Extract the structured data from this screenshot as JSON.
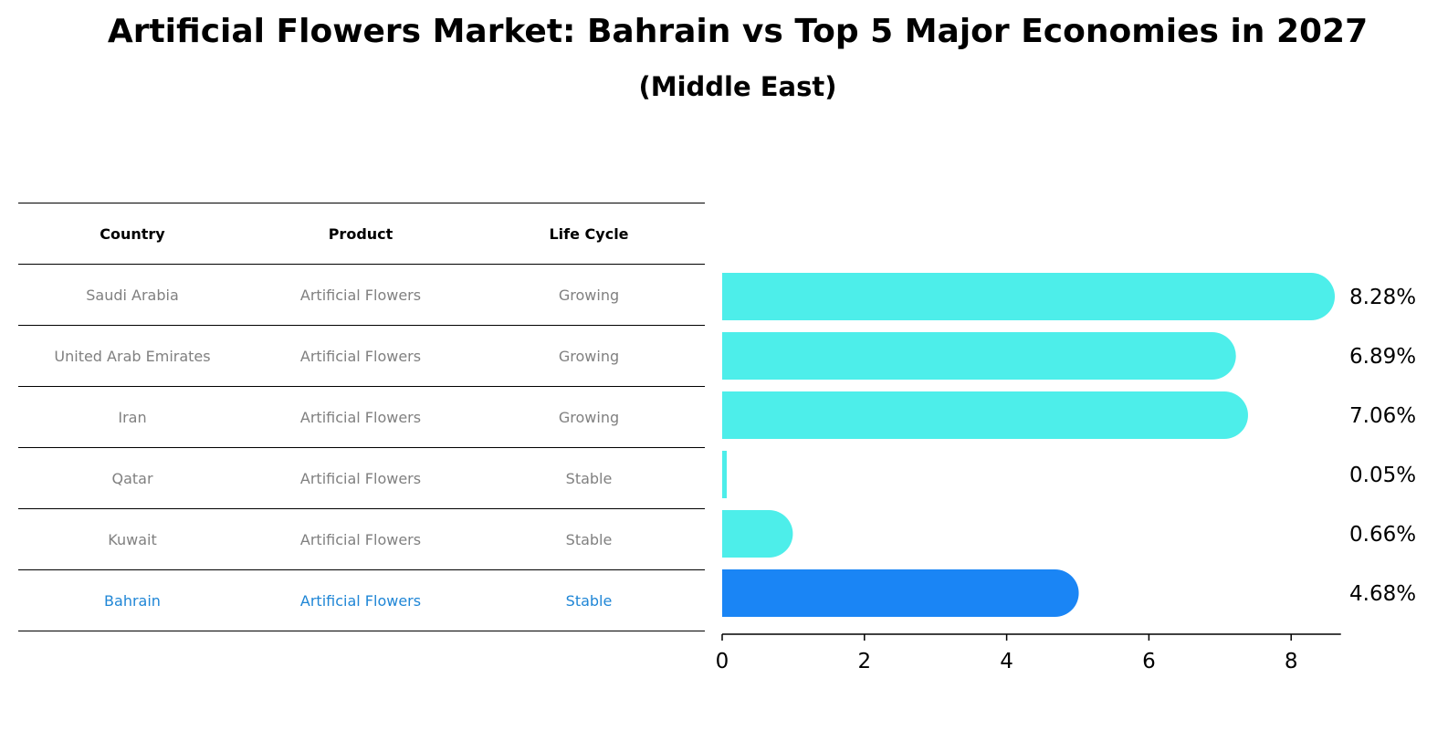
{
  "title": "Artificial Flowers Market: Bahrain vs Top 5 Major Economies in 2027",
  "subtitle": "(Middle East)",
  "table": {
    "headers": [
      "Country",
      "Product",
      "Life Cycle"
    ],
    "rows": [
      [
        "Saudi Arabia",
        "Artificial Flowers",
        "Growing"
      ],
      [
        "United Arab Emirates",
        "Artificial Flowers",
        "Growing"
      ],
      [
        "Iran",
        "Artificial Flowers",
        "Growing"
      ],
      [
        "Qatar",
        "Artificial Flowers",
        "Stable"
      ],
      [
        "Kuwait",
        "Artificial Flowers",
        "Stable"
      ],
      [
        "Bahrain",
        "Artificial Flowers",
        "Stable"
      ]
    ],
    "highlight_row": 5
  },
  "chart_data": {
    "type": "bar",
    "orientation": "horizontal",
    "categories": [
      "Saudi Arabia",
      "United Arab Emirates",
      "Iran",
      "Qatar",
      "Kuwait",
      "Bahrain"
    ],
    "values": [
      8.28,
      6.89,
      7.06,
      0.05,
      0.66,
      4.68
    ],
    "labels": [
      "8.28%",
      "6.89%",
      "7.06%",
      "0.05%",
      "0.66%",
      "4.68%"
    ],
    "xlim": [
      0,
      8.7
    ],
    "xticks": [
      0,
      2,
      4,
      6,
      8
    ],
    "colors": {
      "default": "#4deeea",
      "highlight": "#1a85f5"
    },
    "highlight_index": 5,
    "grid": false
  }
}
